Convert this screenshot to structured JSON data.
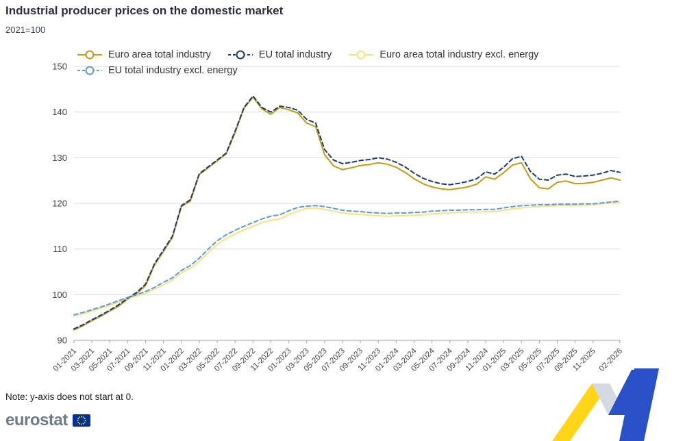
{
  "page": {
    "title": "Industrial producer prices on the domestic market",
    "subtitle": "2021=100",
    "note": "Note: y-axis does not start at 0."
  },
  "logo": {
    "text": "eurostat",
    "flag_blue": "#003399",
    "star_yellow": "#FFCC00"
  },
  "decoration": {
    "yellow": "#FFD617",
    "gray": "#D5DAE1",
    "blue": "#2A50C8"
  },
  "chart_data": {
    "type": "line",
    "title": "Industrial producer prices on the domestic market",
    "subtitle": "2021=100",
    "xlabel": "",
    "ylabel": "",
    "ylim": [
      90,
      150
    ],
    "yticks": [
      90,
      100,
      110,
      120,
      130,
      140,
      150
    ],
    "grid": true,
    "legend_position": "top",
    "x_tick_note": "labels shown every 2 months from 01-2021 to 11-2025, final label 02-2026, rotated 45 degrees",
    "x": [
      "01-2021",
      "02-2021",
      "03-2021",
      "04-2021",
      "05-2021",
      "06-2021",
      "07-2021",
      "08-2021",
      "09-2021",
      "10-2021",
      "11-2021",
      "12-2021",
      "01-2022",
      "02-2022",
      "03-2022",
      "04-2022",
      "05-2022",
      "06-2022",
      "07-2022",
      "08-2022",
      "09-2022",
      "10-2022",
      "11-2022",
      "12-2022",
      "01-2023",
      "02-2023",
      "03-2023",
      "04-2023",
      "05-2023",
      "06-2023",
      "07-2023",
      "08-2023",
      "09-2023",
      "10-2023",
      "11-2023",
      "12-2023",
      "01-2024",
      "02-2024",
      "03-2024",
      "04-2024",
      "05-2024",
      "06-2024",
      "07-2024",
      "08-2024",
      "09-2024",
      "10-2024",
      "11-2024",
      "12-2024",
      "01-2025",
      "02-2025",
      "03-2025",
      "04-2025",
      "05-2025",
      "06-2025",
      "07-2025",
      "08-2025",
      "09-2025",
      "10-2025",
      "11-2025",
      "12-2025",
      "01-2026",
      "02-2026"
    ],
    "series": [
      {
        "name": "Euro area total industry",
        "color": "#C39A11",
        "dash": "solid",
        "values": [
          92.3,
          93.2,
          94.3,
          95.3,
          96.4,
          97.5,
          99.0,
          100.2,
          102.0,
          106.5,
          109.5,
          112.5,
          119.3,
          120.5,
          126.3,
          127.8,
          129.3,
          130.8,
          135.5,
          140.8,
          143.3,
          140.7,
          139.5,
          141.0,
          140.5,
          139.8,
          137.6,
          136.8,
          130.7,
          128.2,
          127.4,
          127.8,
          128.3,
          128.5,
          128.9,
          128.6,
          127.9,
          126.8,
          125.4,
          124.3,
          123.6,
          123.2,
          123.0,
          123.3,
          123.6,
          124.2,
          125.8,
          125.3,
          126.7,
          128.4,
          128.9,
          125.4,
          123.4,
          123.2,
          124.6,
          124.9,
          124.3,
          124.4,
          124.6,
          125.1,
          125.6,
          125.1
        ]
      },
      {
        "name": "EU total industry",
        "color": "#1C3A6E",
        "dash": "dashed",
        "values": [
          92.5,
          93.4,
          94.5,
          95.5,
          96.6,
          97.8,
          99.2,
          100.5,
          102.3,
          106.8,
          109.8,
          112.8,
          119.5,
          120.8,
          126.5,
          128.0,
          129.5,
          131.0,
          135.8,
          141.0,
          143.5,
          141.0,
          140.0,
          141.3,
          141.0,
          140.4,
          138.4,
          137.6,
          131.8,
          129.5,
          128.7,
          129.0,
          129.4,
          129.6,
          130.0,
          129.7,
          129.0,
          128.0,
          126.6,
          125.5,
          124.8,
          124.3,
          124.1,
          124.4,
          124.8,
          125.4,
          126.9,
          126.4,
          127.9,
          129.8,
          130.3,
          127.0,
          125.3,
          125.1,
          126.2,
          126.4,
          125.9,
          126.0,
          126.2,
          126.6,
          127.2,
          126.8
        ]
      },
      {
        "name": "Euro area total industry excl. energy",
        "color": "#FFE081",
        "dash": "solid",
        "values": [
          95.3,
          95.8,
          96.4,
          97.0,
          97.7,
          98.4,
          99.1,
          99.7,
          100.3,
          101.2,
          102.2,
          103.2,
          104.8,
          105.8,
          107.3,
          109.2,
          111.0,
          112.3,
          113.3,
          114.2,
          115.0,
          115.8,
          116.3,
          116.6,
          117.5,
          118.3,
          118.9,
          119.0,
          118.7,
          118.3,
          117.9,
          117.7,
          117.6,
          117.4,
          117.3,
          117.2,
          117.3,
          117.3,
          117.4,
          117.5,
          117.7,
          117.8,
          117.9,
          118.0,
          118.1,
          118.1,
          118.2,
          118.2,
          118.5,
          118.8,
          119.0,
          119.2,
          119.3,
          119.4,
          119.5,
          119.5,
          119.6,
          119.6,
          119.7,
          119.9,
          120.1,
          120.3
        ]
      },
      {
        "name": "EU total industry excl. energy",
        "color": "#5B9BD5",
        "dash": "dashed",
        "values": [
          95.6,
          96.1,
          96.7,
          97.3,
          98.0,
          98.7,
          99.4,
          100.0,
          100.7,
          101.6,
          102.7,
          103.7,
          105.3,
          106.4,
          108.0,
          110.0,
          111.8,
          113.1,
          114.1,
          115.0,
          115.8,
          116.6,
          117.2,
          117.5,
          118.4,
          119.1,
          119.4,
          119.5,
          119.3,
          118.9,
          118.5,
          118.3,
          118.2,
          118.0,
          117.9,
          117.8,
          117.9,
          117.9,
          118.0,
          118.1,
          118.3,
          118.4,
          118.5,
          118.5,
          118.6,
          118.6,
          118.7,
          118.7,
          119.0,
          119.3,
          119.5,
          119.6,
          119.7,
          119.7,
          119.8,
          119.8,
          119.8,
          119.9,
          119.9,
          120.1,
          120.3,
          120.5
        ]
      }
    ]
  }
}
